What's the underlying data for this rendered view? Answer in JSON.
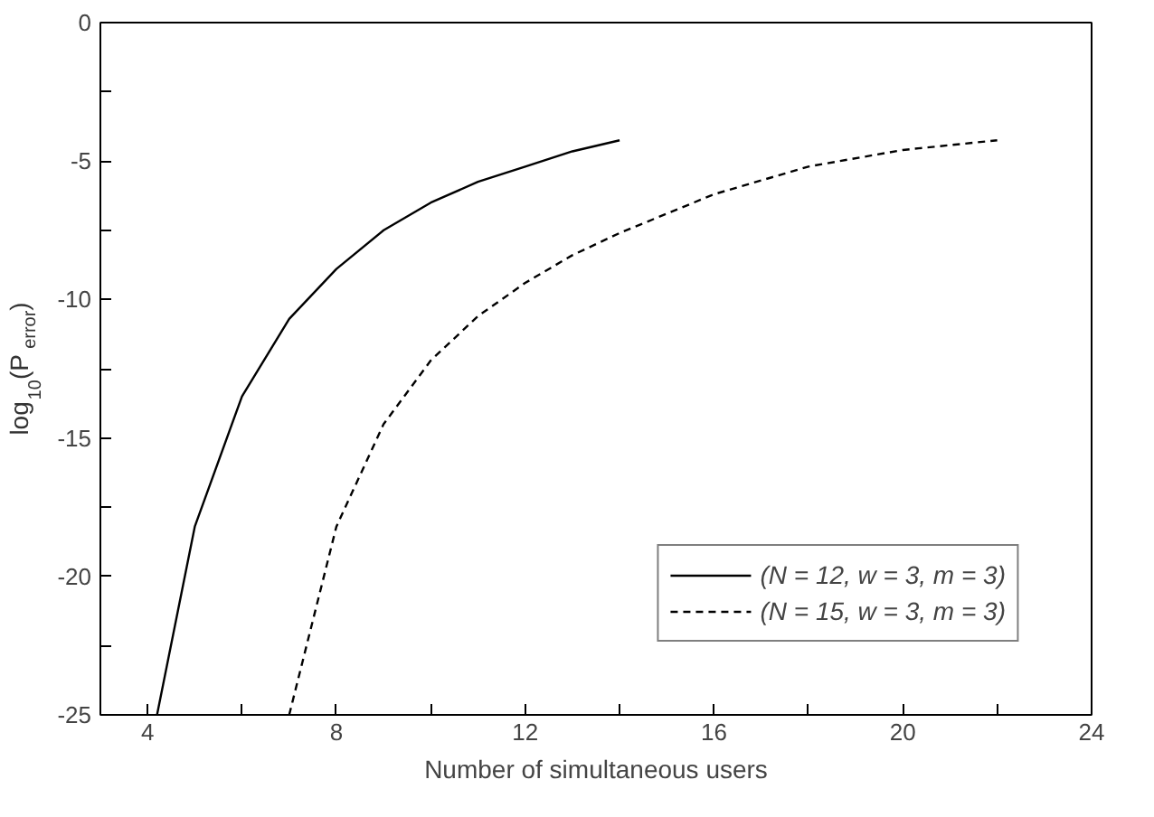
{
  "chart_data": {
    "type": "line",
    "xlabel": "Number of simultaneous users",
    "ylabel": "log$_{10}$ (P$_{error}$)",
    "xlim": [
      3,
      24
    ],
    "ylim": [
      -25,
      0
    ],
    "xticks": [
      4,
      {
        "value": 6,
        "label": null
      },
      8,
      {
        "value": 10,
        "label": null
      },
      12,
      {
        "value": 14,
        "label": null
      },
      16,
      {
        "value": 18,
        "label": null
      },
      20,
      {
        "value": 22,
        "label": null
      },
      24
    ],
    "yticks": [
      -25,
      {
        "value": -22.5,
        "label": null
      },
      -20,
      {
        "value": -17.5,
        "label": null
      },
      -15,
      {
        "value": -12.5,
        "label": null
      },
      -10,
      {
        "value": -7.5,
        "label": null
      },
      -5,
      {
        "value": -2.5,
        "label": null
      },
      0
    ],
    "grid": false,
    "legend": "bottom right",
    "marker": "none",
    "series": [
      {
        "name": "(N = 12, w = 3, m = 3)",
        "color": "#000000",
        "line_style": "solid",
        "x": [
          4.2,
          5,
          6,
          7,
          8,
          9,
          10,
          11,
          12,
          13,
          14
        ],
        "values": [
          -25,
          -18.2,
          -13.5,
          -10.7,
          -8.9,
          -7.5,
          -6.5,
          -5.75,
          -5.2,
          -4.65,
          -4.25
        ]
      },
      {
        "name": "(N = 15, w = 3, m = 3)",
        "color": "#000000",
        "line_style": "dashed",
        "x": [
          7,
          8,
          9,
          10,
          11,
          12,
          13,
          14,
          16,
          18,
          20,
          22
        ],
        "values": [
          -25,
          -18.2,
          -14.5,
          -12.2,
          -10.6,
          -9.4,
          -8.4,
          -7.6,
          -6.2,
          -5.2,
          -4.6,
          -4.25
        ]
      }
    ]
  }
}
